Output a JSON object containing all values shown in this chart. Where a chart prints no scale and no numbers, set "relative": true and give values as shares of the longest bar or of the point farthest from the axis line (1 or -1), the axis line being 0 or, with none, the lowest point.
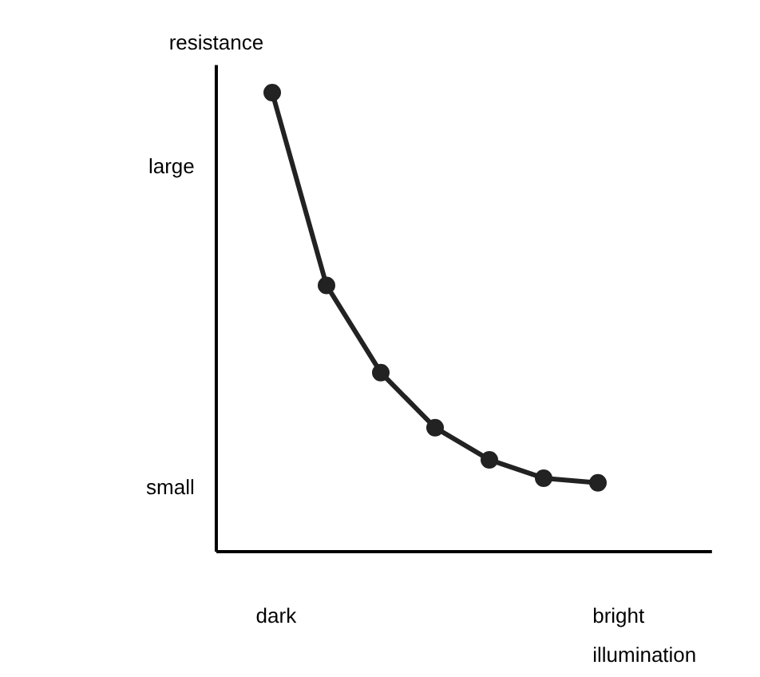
{
  "chart_data": {
    "type": "line",
    "relative": true,
    "ylabel": "resistance",
    "xlabel": "illumination",
    "categories": [
      null,
      null,
      null,
      null,
      null,
      null,
      null
    ],
    "series": [
      {
        "color": "#222222",
        "values": [
          1,
          0.58,
          0.39,
          0.27,
          0.2,
          0.16,
          0.15
        ]
      }
    ],
    "marker": "circle",
    "line_style": "solid",
    "grid": false,
    "annotations": [
      "large",
      "small",
      "dark",
      "bright"
    ]
  }
}
